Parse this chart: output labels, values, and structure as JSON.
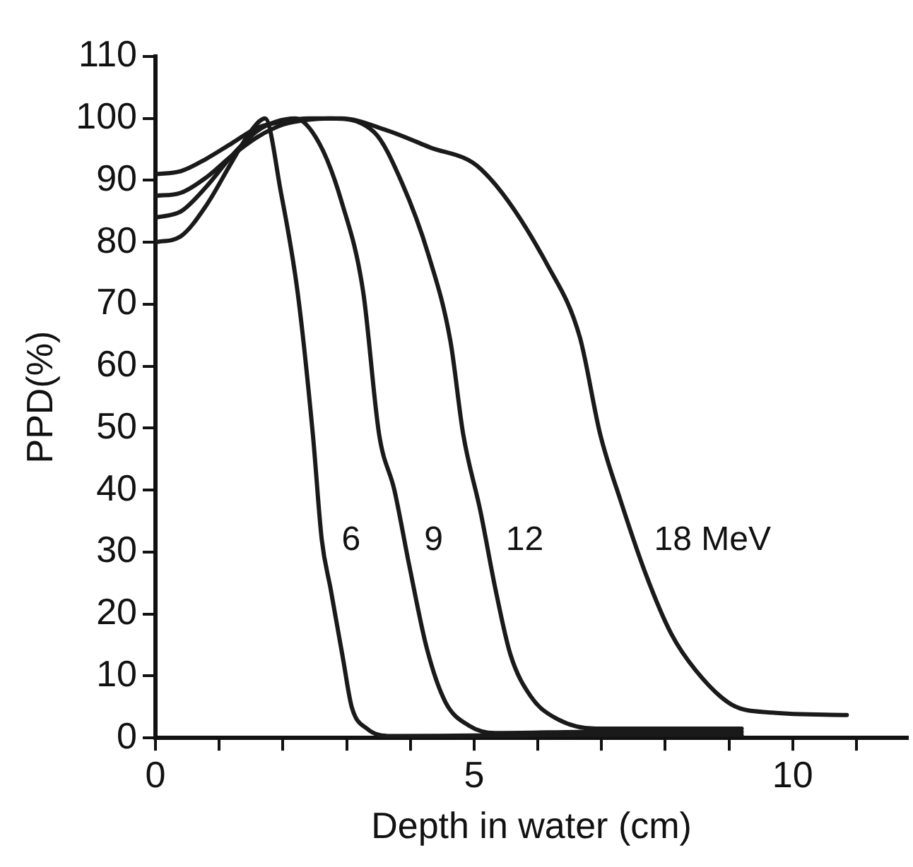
{
  "chart_data": {
    "type": "line",
    "xlabel": "Depth in water (cm)",
    "ylabel": "PPD(%)",
    "xlim": [
      0,
      11.8
    ],
    "ylim": [
      0,
      110
    ],
    "xticks": [
      0,
      {
        "value": 1,
        "label": null
      },
      {
        "value": 2,
        "label": null
      },
      {
        "value": 3,
        "label": null
      },
      {
        "value": 4,
        "label": null
      },
      5,
      {
        "value": 6,
        "label": null
      },
      {
        "value": 7,
        "label": null
      },
      {
        "value": 8,
        "label": null
      },
      {
        "value": 9,
        "label": null
      },
      10,
      {
        "value": 11,
        "label": null
      }
    ],
    "yticks": [
      0,
      10,
      20,
      30,
      40,
      50,
      60,
      70,
      80,
      90,
      100,
      110
    ],
    "grid": false,
    "legend": false,
    "marker": "none",
    "line_style": "solid",
    "series": [
      {
        "name": "6",
        "color": "#1a1a1a",
        "x": [
          0,
          0.4,
          0.8,
          1.2,
          1.5,
          1.72,
          1.97,
          2.23,
          2.47,
          2.61,
          2.75,
          2.94,
          3.08,
          3.32,
          3.7,
          5,
          7,
          9.2
        ],
        "values": [
          80,
          81,
          86,
          93,
          98,
          100,
          88,
          72,
          49,
          32,
          24,
          13,
          5,
          1.5,
          0.3,
          0.4,
          0.5,
          0.5
        ]
      },
      {
        "name": "9",
        "color": "#1a1a1a",
        "x": [
          0,
          0.4,
          0.8,
          1.2,
          1.6,
          1.9,
          2.19,
          2.57,
          2.92,
          3.26,
          3.51,
          3.75,
          3.98,
          4.26,
          4.55,
          4.92,
          5.33,
          7,
          9.2
        ],
        "values": [
          84,
          85,
          89,
          94,
          98,
          99.5,
          100,
          96,
          86.6,
          72,
          49,
          40,
          28,
          14.4,
          5.8,
          2,
          0.8,
          1,
          1
        ]
      },
      {
        "name": "12",
        "color": "#1a1a1a",
        "x": [
          0,
          0.4,
          0.8,
          1.2,
          1.6,
          2,
          2.4,
          2.74,
          3.43,
          3.86,
          4.29,
          4.63,
          4.83,
          5.1,
          5.34,
          5.57,
          5.89,
          6.28,
          6.91,
          8,
          9.2
        ],
        "values": [
          87.5,
          88,
          90.5,
          94,
          97,
          99,
          99.8,
          100,
          97.8,
          89.8,
          77.8,
          64,
          49,
          36.6,
          23.8,
          13.5,
          6.7,
          3.2,
          1.5,
          1.5,
          1.5
        ]
      },
      {
        "name": "18 MeV",
        "color": "#1a1a1a",
        "x": [
          0,
          0.4,
          0.8,
          1.2,
          1.6,
          2,
          2.4,
          2.92,
          3.6,
          4.29,
          5.11,
          6.17,
          6.66,
          6.98,
          7.3,
          7.7,
          8.09,
          8.48,
          9.04,
          9.67,
          10.85
        ],
        "values": [
          91,
          91.5,
          93.5,
          96,
          98.5,
          99.5,
          100,
          100,
          98.2,
          95.4,
          91.8,
          76,
          64.7,
          49,
          38.3,
          26.3,
          16.9,
          10.9,
          5.4,
          4.1,
          3.7
        ]
      }
    ]
  }
}
